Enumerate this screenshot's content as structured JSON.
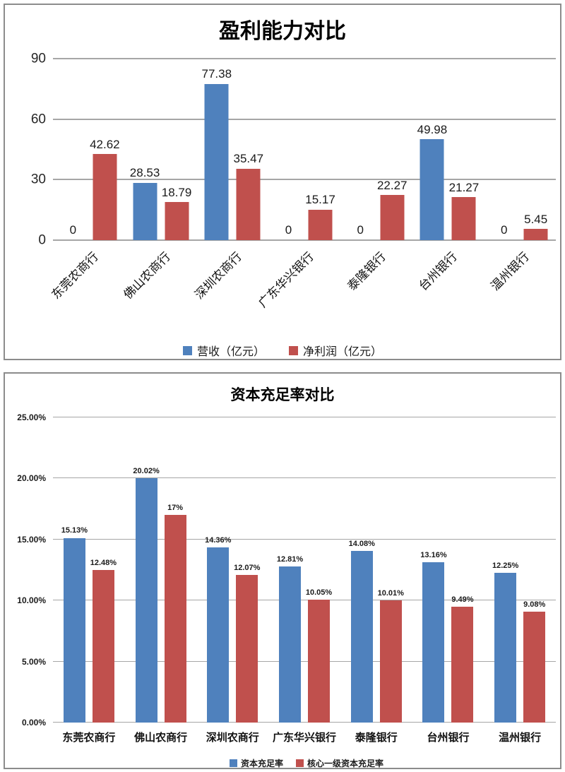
{
  "chart_data": [
    {
      "type": "bar",
      "title": "盈利能力对比",
      "categories": [
        "东莞农商行",
        "佛山农商行",
        "深圳农商行",
        "广东华兴银行",
        "泰隆银行",
        "台州银行",
        "温州银行"
      ],
      "series": [
        {
          "name": "营收（亿元）",
          "color": "#4f81bd",
          "values": [
            0,
            28.53,
            77.38,
            0,
            0,
            49.98,
            0
          ],
          "labels": [
            "0",
            "28.53",
            "77.38",
            "0",
            "0",
            "49.98",
            "0"
          ]
        },
        {
          "name": "净利润（亿元）",
          "color": "#c0504d",
          "values": [
            42.62,
            18.79,
            35.47,
            15.17,
            22.27,
            21.27,
            5.45
          ],
          "labels": [
            "42.62",
            "18.79",
            "35.47",
            "15.17",
            "22.27",
            "21.27",
            "5.45"
          ]
        }
      ],
      "y_ticks": [
        {
          "label": "0",
          "value": 0
        },
        {
          "label": "30",
          "value": 30
        },
        {
          "label": "60",
          "value": 60
        },
        {
          "label": "90",
          "value": 90
        }
      ],
      "ylim": [
        0,
        90
      ],
      "grid": true,
      "legend_position": "bottom",
      "x_label_rotation_deg": 45
    },
    {
      "type": "bar",
      "title": "资本充足率对比",
      "categories": [
        "东莞农商行",
        "佛山农商行",
        "深圳农商行",
        "广东华兴银行",
        "泰隆银行",
        "台州银行",
        "温州银行"
      ],
      "series": [
        {
          "name": "资本充足率",
          "color": "#4f81bd",
          "values": [
            15.13,
            20.02,
            14.36,
            12.81,
            14.08,
            13.16,
            12.25
          ],
          "labels": [
            "15.13%",
            "20.02%",
            "14.36%",
            "12.81%",
            "14.08%",
            "13.16%",
            "12.25%"
          ]
        },
        {
          "name": "核心一级资本充足率",
          "color": "#c0504d",
          "values": [
            12.48,
            17,
            12.07,
            10.05,
            10.01,
            9.49,
            9.08
          ],
          "labels": [
            "12.48%",
            "17%",
            "12.07%",
            "10.05%",
            "10.01%",
            "9.49%",
            "9.08%"
          ]
        }
      ],
      "y_ticks": [
        {
          "label": "0.00%",
          "value": 0
        },
        {
          "label": "5.00%",
          "value": 5
        },
        {
          "label": "10.00%",
          "value": 10
        },
        {
          "label": "15.00%",
          "value": 15
        },
        {
          "label": "20.00%",
          "value": 20
        },
        {
          "label": "25.00%",
          "value": 25
        }
      ],
      "ylim": [
        0,
        25
      ],
      "grid": true,
      "legend_position": "bottom",
      "x_label_rotation_deg": 0
    }
  ],
  "style": {
    "panel_border_color": "#8c8c8c",
    "grid_color": "#a6a6a6",
    "blue": "#4f81bd",
    "red": "#c0504d"
  }
}
